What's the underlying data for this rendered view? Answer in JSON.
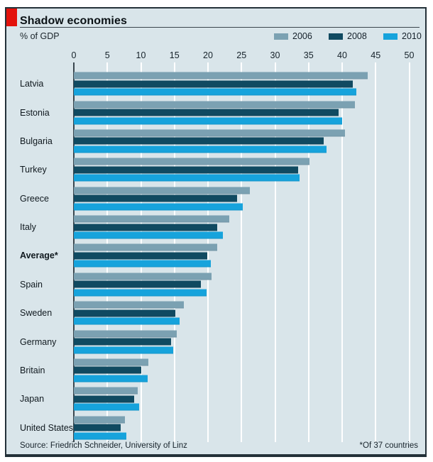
{
  "header": {
    "title": "Shadow economies",
    "subtitle": "% of GDP"
  },
  "legend": [
    {
      "label": "2006",
      "color": "#7ba1b2"
    },
    {
      "label": "2008",
      "color": "#104a61"
    },
    {
      "label": "2010",
      "color": "#16a3dc"
    }
  ],
  "axis": {
    "ticks": [
      0,
      5,
      10,
      15,
      20,
      25,
      30,
      35,
      40,
      45,
      50
    ],
    "min": 0,
    "max": 50
  },
  "chart_data": {
    "type": "bar",
    "orientation": "horizontal",
    "title": "Shadow economies",
    "subtitle": "% of GDP",
    "xlim": [
      0,
      50
    ],
    "grid": "white vertical gridlines every 5",
    "legend_position": "top-right",
    "emphasized_category": "Average*",
    "categories": [
      "Latvia",
      "Estonia",
      "Bulgaria",
      "Turkey",
      "Greece",
      "Italy",
      "Average*",
      "Spain",
      "Sweden",
      "Germany",
      "Britain",
      "Japan",
      "United States"
    ],
    "series": [
      {
        "name": "2006",
        "color": "#7ba1b2",
        "values": [
          43.8,
          41.9,
          40.4,
          35.1,
          26.2,
          23.2,
          21.4,
          20.5,
          16.4,
          15.3,
          11.1,
          9.5,
          7.6
        ]
      },
      {
        "name": "2008",
        "color": "#104a61",
        "values": [
          41.6,
          39.5,
          37.2,
          33.4,
          24.3,
          21.4,
          19.9,
          18.9,
          15.1,
          14.5,
          10.1,
          9.0,
          7.0
        ]
      },
      {
        "name": "2010",
        "color": "#16a3dc",
        "values": [
          42.1,
          40.0,
          37.7,
          33.6,
          25.2,
          22.2,
          20.4,
          19.8,
          15.8,
          14.8,
          11.0,
          9.7,
          7.8
        ]
      }
    ]
  },
  "footer": {
    "source": "Source: Friedrich Schneider, University of Linz",
    "footnote": "*Of 37 countries"
  },
  "colors": {
    "accent_red": "#e3120b",
    "panel_background": "#d9e5ea",
    "border": "#243139",
    "gridline": "#ffffff"
  }
}
